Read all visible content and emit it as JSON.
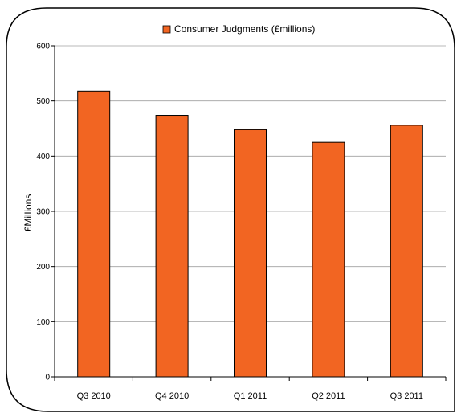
{
  "colors": {
    "bar": "#F26522",
    "bar_stroke": "#000000",
    "grid": "#A0A0A0",
    "axis": "#000000",
    "frame": "#000000"
  },
  "chart_data": {
    "type": "bar",
    "categories": [
      "Q3 2010",
      "Q4 2010",
      "Q1 2011",
      "Q2 2011",
      "Q3 2011"
    ],
    "series": [
      {
        "name": "Consumer Judgments (£millions)",
        "values": [
          518,
          474,
          448,
          425,
          456
        ]
      }
    ],
    "title": "",
    "xlabel": "",
    "ylabel": "£Millions",
    "ylim": [
      0,
      600
    ],
    "yticks": [
      0,
      100,
      200,
      300,
      400,
      500,
      600
    ],
    "grid": true,
    "legend_position": "top-center"
  }
}
